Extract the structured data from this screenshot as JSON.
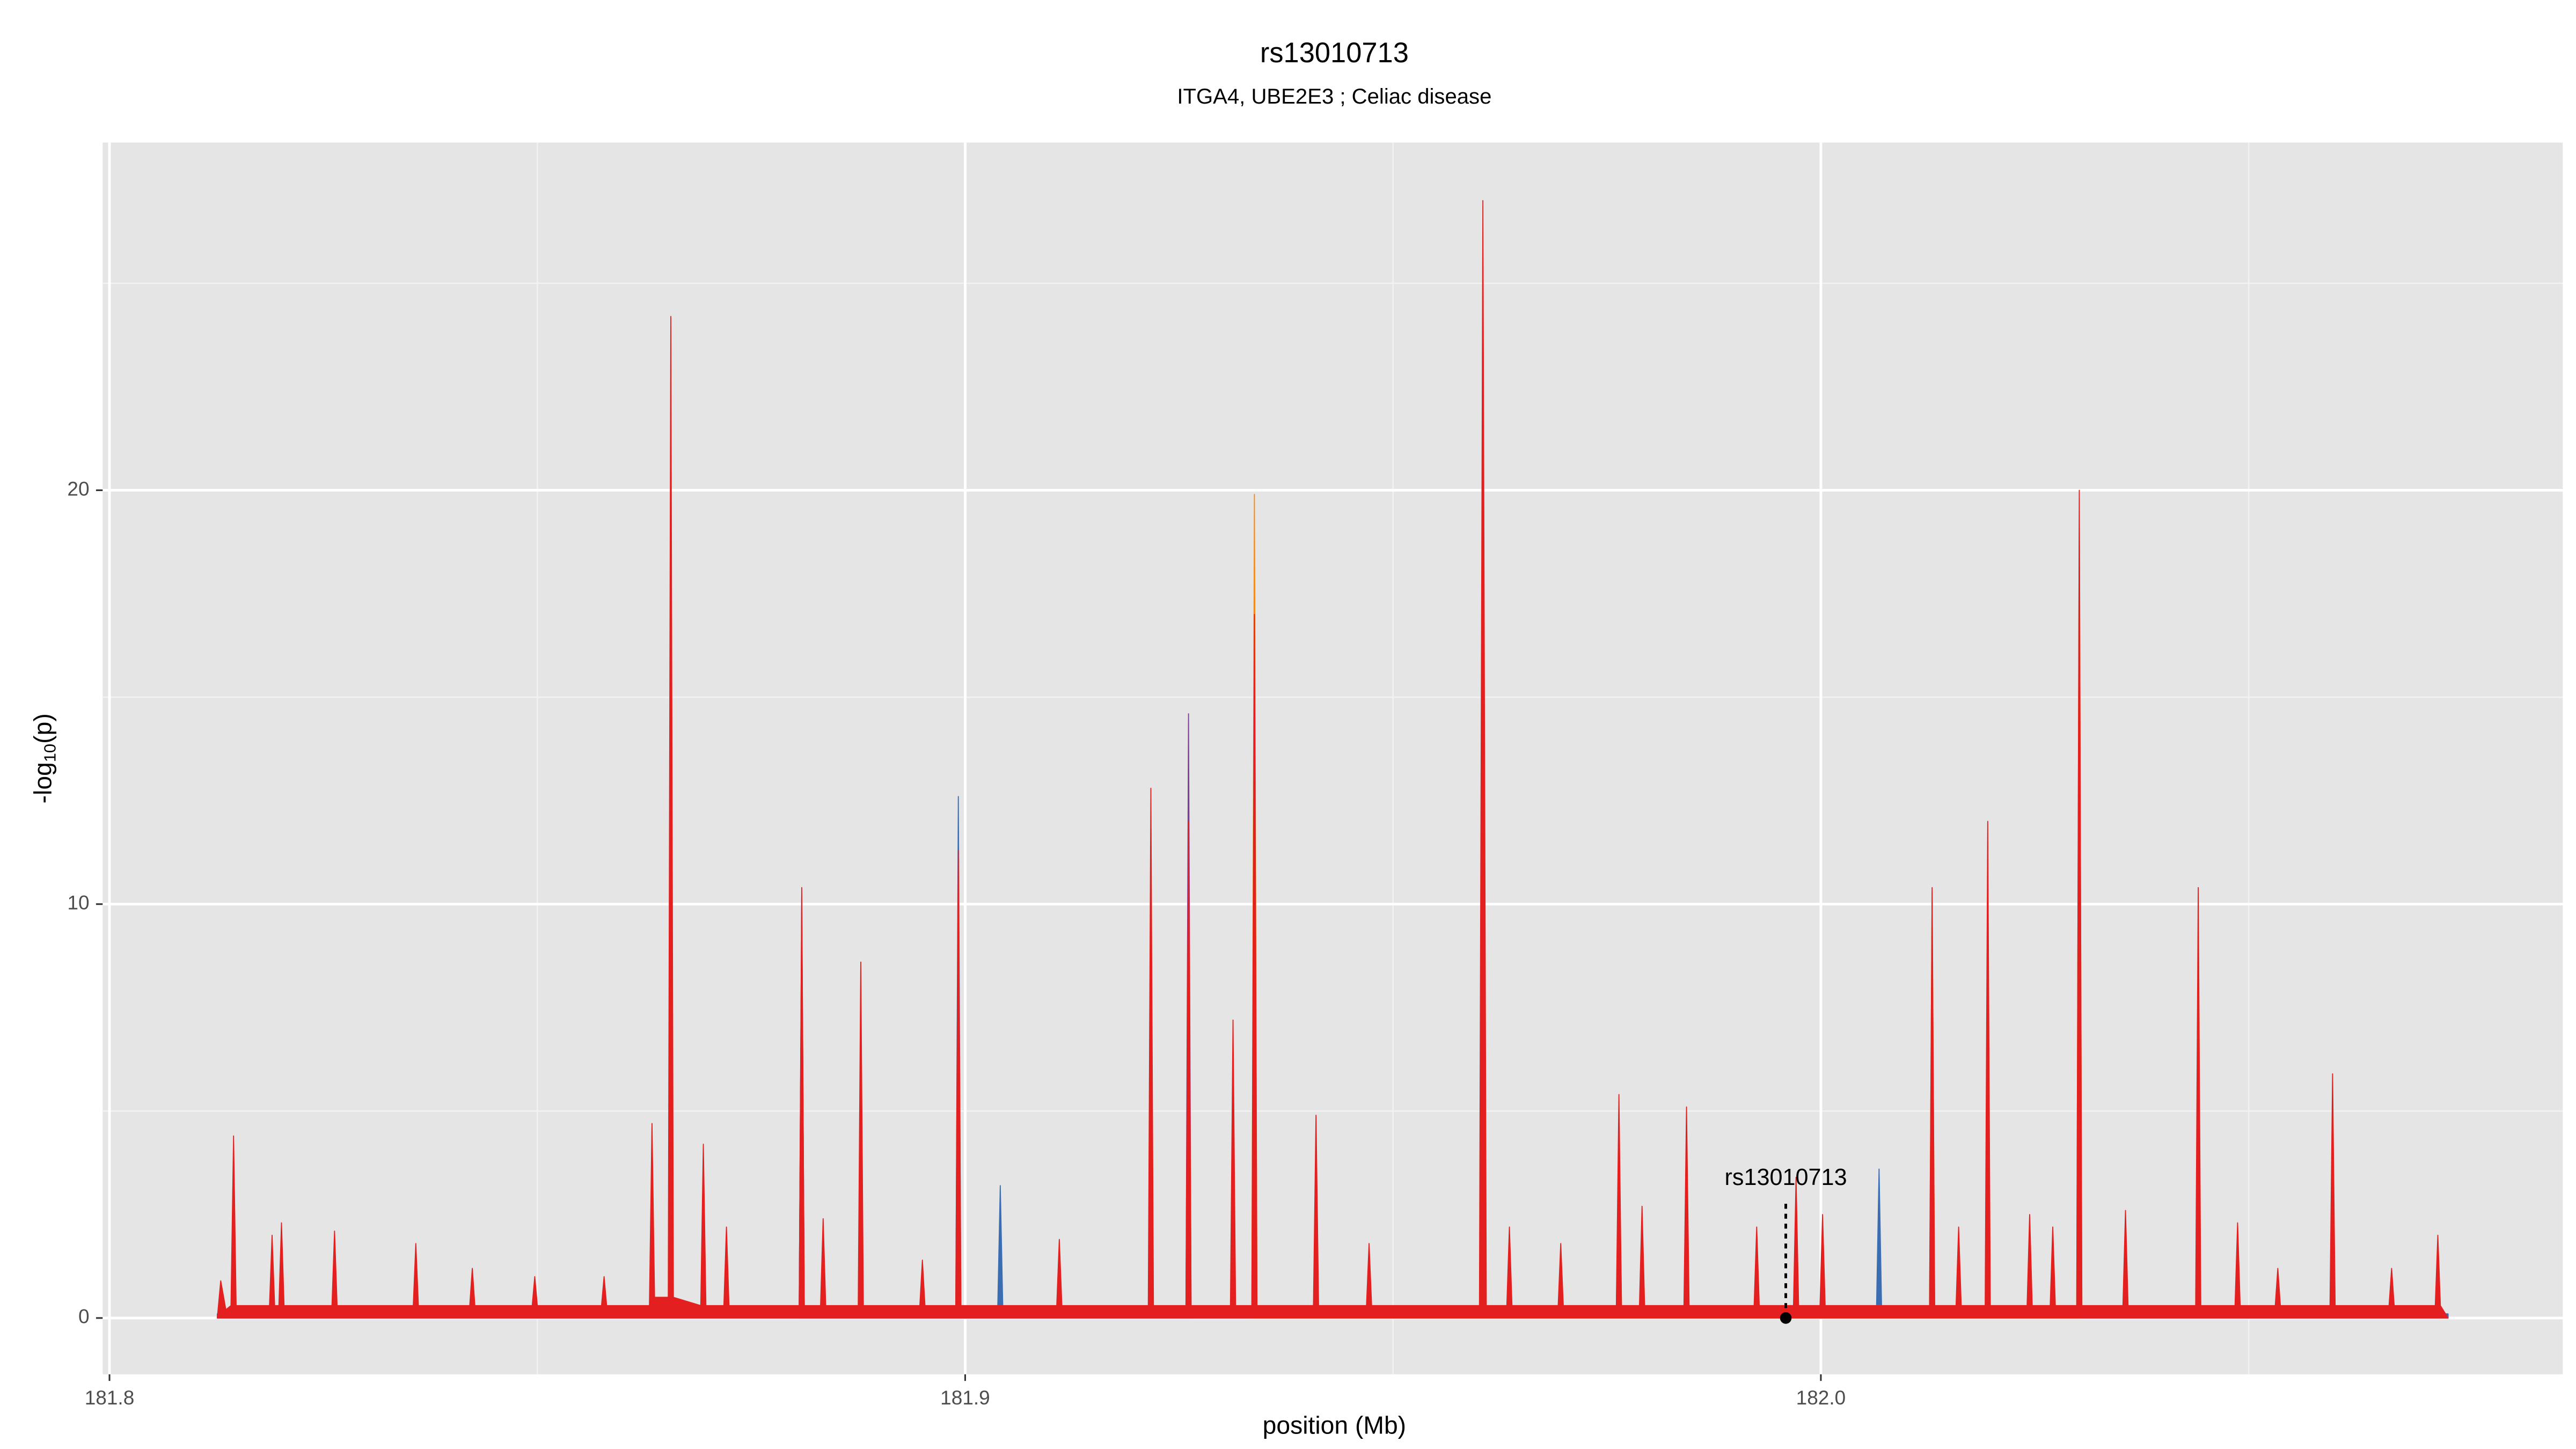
{
  "chart_data": {
    "type": "area",
    "title": "rs13010713",
    "subtitle": "ITGA4, UBE2E3 ; Celiac disease",
    "x_label": "position (Mb)",
    "y_label": [
      "-log",
      "10",
      "(p)"
    ],
    "xlim": [
      181.7992,
      182.0867
    ],
    "ylim": [
      -1.36,
      28.4
    ],
    "xticks": [
      181.8,
      181.9,
      {
        "value": 182,
        "label": "182.0"
      }
    ],
    "yticks": [
      0,
      10,
      20
    ],
    "xminor": [
      181.85,
      181.95,
      182.05
    ],
    "yminor": [
      5,
      15,
      25
    ],
    "grid": true,
    "series": [
      {
        "color": "#3b6db3",
        "x": [
          181.8126,
          181.8806,
          181.8809,
          181.8812,
          181.8989,
          181.8992,
          181.8995,
          181.9038,
          181.9041,
          181.9044,
          182.0065,
          182.0068,
          182.0071,
          182.0733
        ],
        "values": [
          0.1,
          0.2,
          9.8,
          0.2,
          0.2,
          12.6,
          0.2,
          0.2,
          3.2,
          0.2,
          0.2,
          3.6,
          0.2,
          0.1
        ]
      },
      {
        "color": "#7d3f96",
        "x": [
          181.8806,
          181.8809,
          181.8812,
          181.9258,
          181.9261,
          181.9264
        ],
        "values": [
          0.2,
          10.2,
          0.2,
          0.2,
          14.6,
          0.2
        ]
      },
      {
        "color": "#f28a1d",
        "x": [
          181.9335,
          181.9338,
          181.9341,
          181.9761,
          181.9764,
          181.9767,
          182.0127,
          182.013,
          182.0133,
          182.0299,
          182.0302,
          182.0305
        ],
        "values": [
          0.3,
          19.9,
          0.3,
          0.3,
          4.2,
          0.3,
          0.3,
          10.3,
          0.3,
          0.3,
          19.8,
          0.3
        ]
      },
      {
        "color": "#e3201f",
        "x": [
          181.8126,
          181.813,
          181.8136,
          181.8142,
          181.8145,
          181.8148,
          181.8187,
          181.819,
          181.8193,
          181.8198,
          181.8201,
          181.8204,
          181.826,
          181.8263,
          181.8266,
          181.8355,
          181.8358,
          181.8361,
          181.8421,
          181.8424,
          181.8427,
          181.8494,
          181.8497,
          181.85,
          181.8575,
          181.8578,
          181.8581,
          181.8631,
          181.8634,
          181.8637,
          181.8653,
          181.8656,
          181.8659,
          181.8691,
          181.8694,
          181.8697,
          181.8718,
          181.8721,
          181.8724,
          181.8806,
          181.8809,
          181.8812,
          181.8831,
          181.8834,
          181.8837,
          181.8875,
          181.8878,
          181.8881,
          181.8947,
          181.895,
          181.8953,
          181.8989,
          181.8992,
          181.8995,
          181.9107,
          181.911,
          181.9113,
          181.9214,
          181.9217,
          181.922,
          181.9258,
          181.9261,
          181.9264,
          181.931,
          181.9313,
          181.9316,
          181.9335,
          181.9338,
          181.9341,
          181.9407,
          181.941,
          181.9413,
          181.9469,
          181.9472,
          181.9475,
          181.9601,
          181.9605,
          181.9609,
          181.9633,
          181.9636,
          181.9639,
          181.9693,
          181.9696,
          181.9699,
          181.9761,
          181.9764,
          181.9767,
          181.9788,
          181.9791,
          181.9794,
          181.984,
          181.9843,
          181.9846,
          181.9922,
          181.9925,
          181.9928,
          181.9968,
          181.9971,
          181.9974,
          181.9999,
          182.0002,
          182.0005,
          182.0127,
          182.013,
          182.0133,
          182.0158,
          182.0161,
          182.0164,
          182.0192,
          182.0195,
          182.0198,
          182.0241,
          182.0244,
          182.0247,
          182.0268,
          182.0271,
          182.0274,
          182.0299,
          182.0302,
          182.0305,
          182.0353,
          182.0356,
          182.0359,
          182.0438,
          182.0441,
          182.0444,
          182.0484,
          182.0487,
          182.049,
          182.0531,
          182.0534,
          182.0537,
          182.0595,
          182.0598,
          182.0601,
          182.0664,
          182.0667,
          182.067,
          182.0718,
          182.0721,
          182.0724,
          182.0733
        ],
        "values": [
          0,
          0.9,
          0.2,
          0.3,
          4.4,
          0.3,
          0.3,
          2.0,
          0.3,
          0.3,
          2.3,
          0.3,
          0.3,
          2.1,
          0.3,
          0.3,
          1.8,
          0.3,
          0.3,
          1.2,
          0.3,
          0.3,
          1.0,
          0.3,
          0.3,
          1.0,
          0.3,
          0.3,
          4.7,
          0.5,
          0.5,
          24.2,
          0.5,
          0.3,
          4.2,
          0.3,
          0.3,
          2.2,
          0.3,
          0.3,
          10.4,
          0.3,
          0.3,
          2.4,
          0.3,
          0.3,
          8.6,
          0.3,
          0.3,
          1.4,
          0.3,
          0.3,
          11.3,
          0.3,
          0.3,
          1.9,
          0.3,
          0.3,
          12.8,
          0.3,
          0.3,
          12.0,
          0.3,
          0.3,
          7.2,
          0.3,
          0.3,
          17.0,
          0.3,
          0.3,
          4.9,
          0.3,
          0.3,
          1.8,
          0.3,
          0.3,
          27.0,
          0.3,
          0.3,
          2.2,
          0.3,
          0.3,
          1.8,
          0.3,
          0.3,
          5.4,
          0.3,
          0.3,
          2.7,
          0.3,
          0.3,
          5.1,
          0.3,
          0.3,
          2.2,
          0.3,
          0.3,
          3.4,
          0.3,
          0.3,
          2.5,
          0.3,
          0.3,
          10.4,
          0.3,
          0.3,
          2.2,
          0.3,
          0.3,
          12.0,
          0.3,
          0.3,
          2.5,
          0.3,
          0.3,
          2.2,
          0.3,
          0.3,
          20.0,
          0.3,
          0.3,
          2.6,
          0.3,
          0.3,
          10.4,
          0.3,
          0.3,
          2.3,
          0.3,
          0.3,
          1.2,
          0.3,
          0.3,
          5.9,
          0.3,
          0.3,
          1.2,
          0.3,
          0.3,
          2.0,
          0.3,
          0
        ]
      }
    ],
    "annotation": {
      "text": "rs13010713",
      "x": 181.9959,
      "y": 0
    }
  }
}
